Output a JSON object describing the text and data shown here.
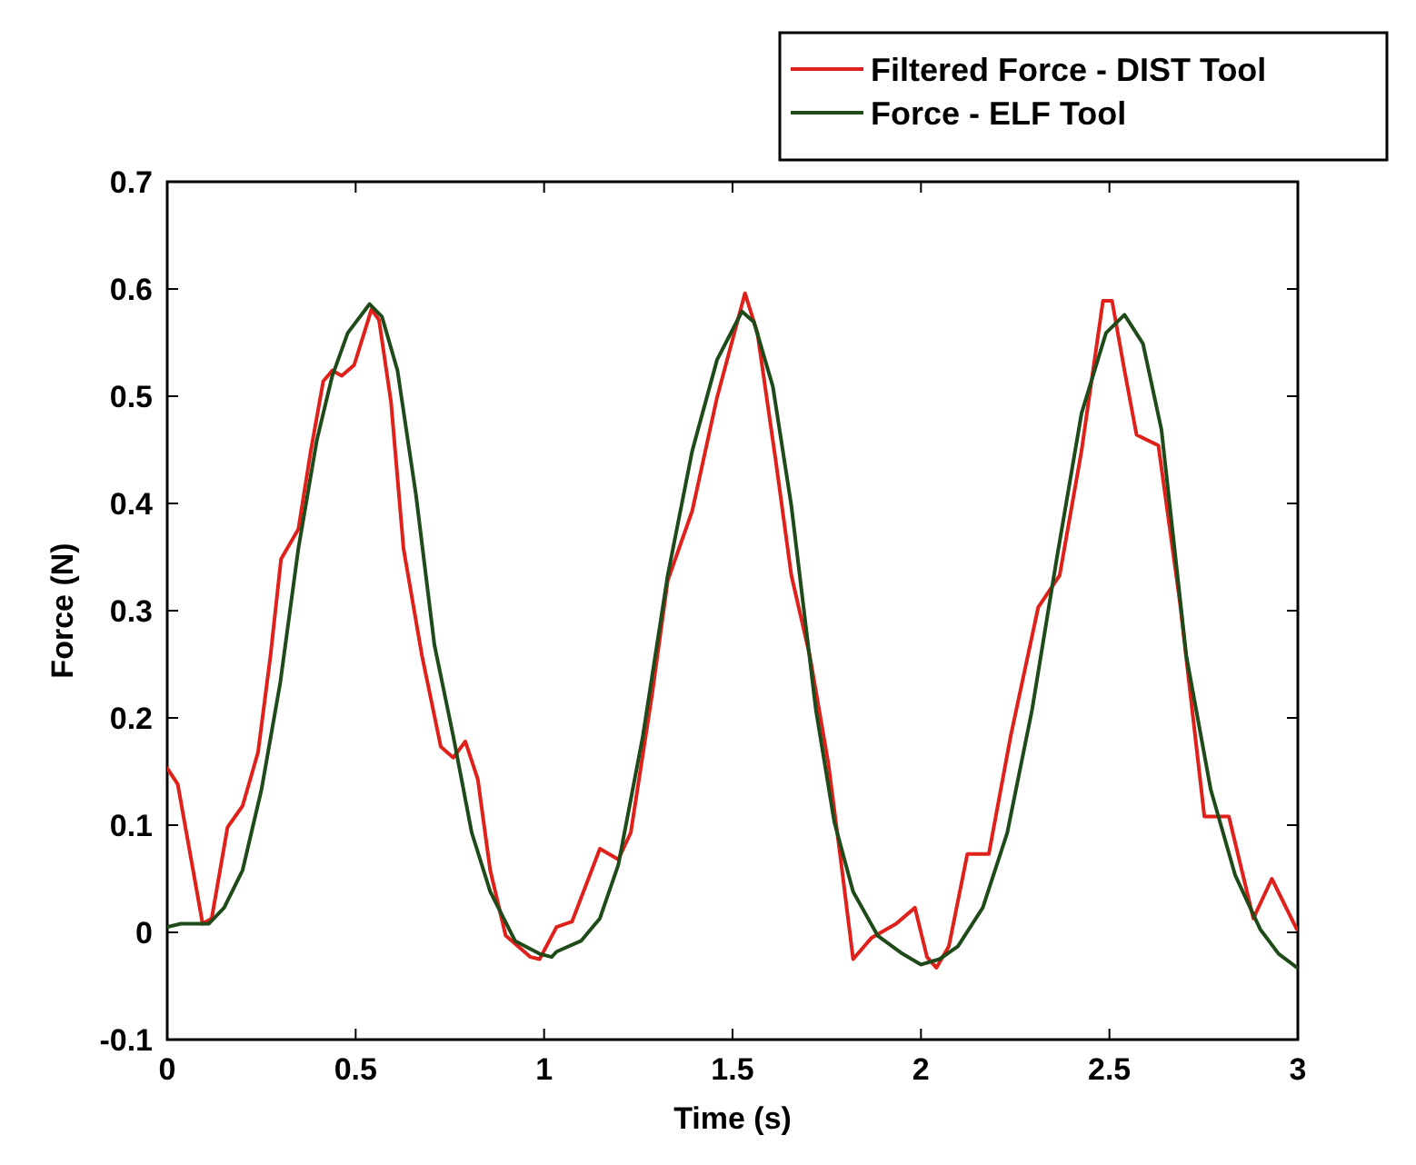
{
  "chart_data": {
    "type": "line",
    "xlabel": "Time (s)",
    "ylabel": "Force (N)",
    "xlim": [
      0,
      3
    ],
    "xticks": [
      0,
      0.5,
      1,
      1.5,
      2,
      2.5,
      3
    ],
    "ylim": [
      -0.1,
      0.7
    ],
    "yticks": [
      -0.1,
      0,
      0.1,
      0.2,
      0.3,
      0.4,
      0.5,
      0.6,
      0.7
    ],
    "grid": false,
    "legend": "top right",
    "marker": "none",
    "line_style": "solid",
    "series": [
      {
        "name": "Filtered Force - DIST Tool",
        "color": "#e0201a",
        "x": [
          0,
          0.028,
          0.094,
          0.118,
          0.16,
          0.2,
          0.241,
          0.274,
          0.302,
          0.348,
          0.381,
          0.414,
          0.438,
          0.463,
          0.496,
          0.542,
          0.562,
          0.594,
          0.627,
          0.676,
          0.726,
          0.759,
          0.791,
          0.824,
          0.857,
          0.898,
          0.964,
          0.988,
          1.033,
          1.074,
          1.148,
          1.197,
          1.23,
          1.287,
          1.328,
          1.393,
          1.459,
          1.533,
          1.566,
          1.615,
          1.656,
          1.705,
          1.754,
          1.787,
          1.82,
          1.869,
          1.934,
          1.984,
          2.016,
          2.041,
          2.074,
          2.123,
          2.18,
          2.238,
          2.311,
          2.368,
          2.426,
          2.483,
          2.507,
          2.54,
          2.572,
          2.63,
          2.687,
          2.752,
          2.817,
          2.882,
          2.931,
          2.997
        ],
        "values": [
          0.153,
          0.138,
          0.008,
          0.013,
          0.098,
          0.118,
          0.168,
          0.258,
          0.348,
          0.376,
          0.449,
          0.514,
          0.524,
          0.519,
          0.529,
          0.581,
          0.571,
          0.494,
          0.358,
          0.258,
          0.173,
          0.163,
          0.178,
          0.143,
          0.058,
          -0.003,
          -0.023,
          -0.025,
          0.005,
          0.01,
          0.078,
          0.068,
          0.093,
          0.223,
          0.328,
          0.393,
          0.499,
          0.596,
          0.559,
          0.439,
          0.333,
          0.258,
          0.158,
          0.068,
          -0.025,
          -0.005,
          0.008,
          0.023,
          -0.023,
          -0.033,
          -0.013,
          0.073,
          0.073,
          0.183,
          0.303,
          0.333,
          0.449,
          0.589,
          0.589,
          0.524,
          0.464,
          0.454,
          0.308,
          0.108,
          0.108,
          0.013,
          0.05,
          0.003
        ]
      },
      {
        "name": "Force - ELF Tool",
        "color": "#1f4a1a",
        "x": [
          0,
          0.036,
          0.069,
          0.11,
          0.151,
          0.2,
          0.25,
          0.3,
          0.348,
          0.397,
          0.438,
          0.479,
          0.537,
          0.57,
          0.611,
          0.66,
          0.709,
          0.759,
          0.808,
          0.857,
          0.923,
          0.988,
          1.02,
          1.033,
          1.098,
          1.148,
          1.197,
          1.262,
          1.328,
          1.393,
          1.459,
          1.525,
          1.557,
          1.607,
          1.656,
          1.721,
          1.77,
          1.82,
          1.885,
          1.951,
          2.0,
          2.049,
          2.098,
          2.164,
          2.229,
          2.295,
          2.36,
          2.426,
          2.491,
          2.54,
          2.589,
          2.638,
          2.704,
          2.769,
          2.834,
          2.9,
          2.949,
          2.998
        ],
        "values": [
          0.005,
          0.008,
          0.008,
          0.008,
          0.023,
          0.058,
          0.133,
          0.233,
          0.358,
          0.459,
          0.519,
          0.559,
          0.586,
          0.574,
          0.524,
          0.408,
          0.268,
          0.183,
          0.093,
          0.038,
          -0.008,
          -0.02,
          -0.023,
          -0.018,
          -0.008,
          0.013,
          0.063,
          0.183,
          0.333,
          0.449,
          0.534,
          0.579,
          0.569,
          0.509,
          0.398,
          0.208,
          0.103,
          0.038,
          -0.003,
          -0.02,
          -0.03,
          -0.025,
          -0.013,
          0.023,
          0.093,
          0.208,
          0.348,
          0.484,
          0.559,
          0.576,
          0.549,
          0.469,
          0.258,
          0.133,
          0.053,
          0.003,
          -0.02,
          -0.033
        ]
      }
    ]
  }
}
